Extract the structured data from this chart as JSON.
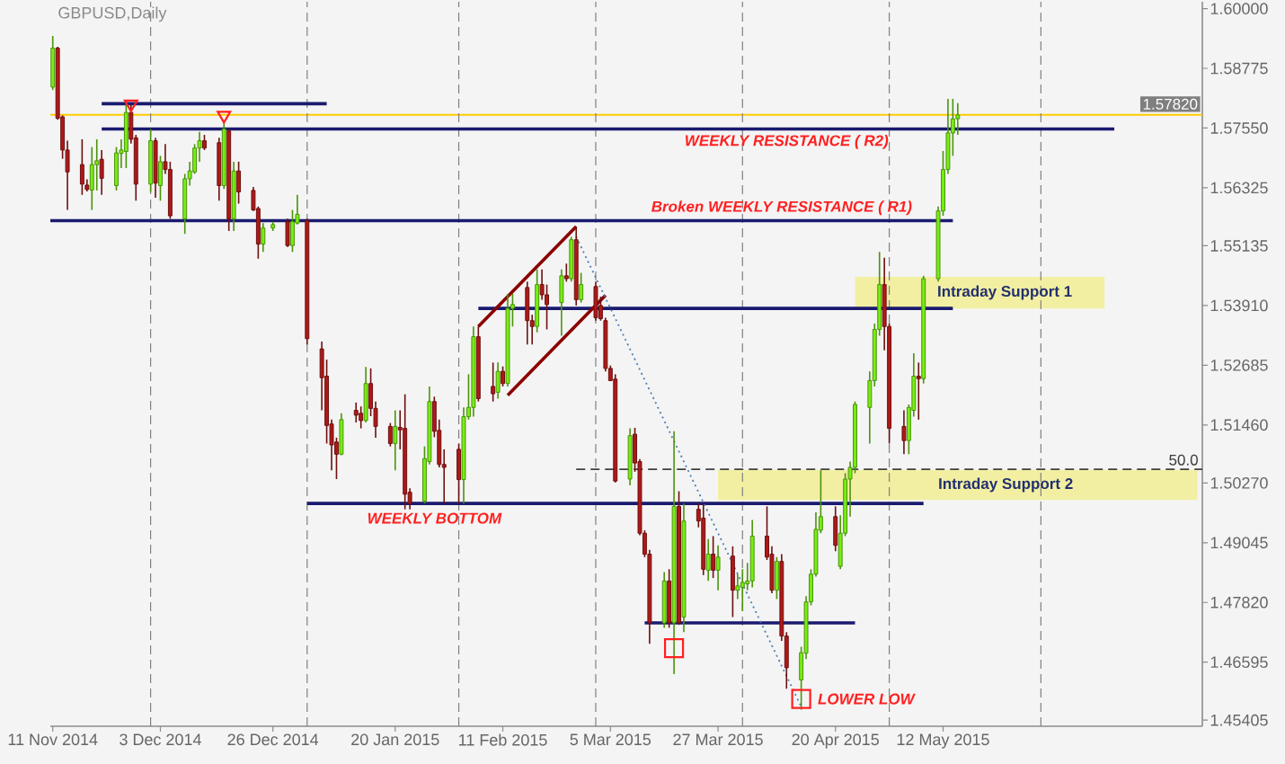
{
  "chart_data": {
    "type": "candlestick",
    "title": "GBPUSD,Daily",
    "xlim": [
      "2014-11-10T12:00",
      "2015-07-04"
    ],
    "ylim": [
      1.4528,
      1.6014
    ],
    "xticks": [
      {
        "value": "2014-11-11",
        "label": "11 Nov 2014"
      },
      {
        "value": "2014-12-03",
        "label": "3 Dec 2014"
      },
      {
        "value": "2014-12-26",
        "label": "26 Dec 2014"
      },
      {
        "value": "2015-01-20",
        "label": "20 Jan 2015"
      },
      {
        "value": "2015-02-11",
        "label": "11 Feb 2015"
      },
      {
        "value": "2015-03-05",
        "label": "5 Mar 2015"
      },
      {
        "value": "2015-03-27",
        "label": "27 Mar 2015"
      },
      {
        "value": "2015-04-20",
        "label": "20 Apr 2015"
      },
      {
        "value": "2015-05-12",
        "label": "12 May 2015"
      }
    ],
    "yticks": [
      {
        "value": 1.6,
        "label": "1.60000"
      },
      {
        "value": 1.58775,
        "label": "1.58775"
      },
      {
        "value": 1.5755,
        "label": "1.57550"
      },
      {
        "value": 1.56325,
        "label": "1.56325"
      },
      {
        "value": 1.55135,
        "label": "1.55135"
      },
      {
        "value": 1.5391,
        "label": "1.53910"
      },
      {
        "value": 1.52685,
        "label": "1.52685"
      },
      {
        "value": 1.5146,
        "label": "1.51460"
      },
      {
        "value": 1.5027,
        "label": "1.50270"
      },
      {
        "value": 1.49045,
        "label": "1.49045"
      },
      {
        "value": 1.4782,
        "label": "1.47820"
      },
      {
        "value": 1.46595,
        "label": "1.46595"
      },
      {
        "value": 1.45405,
        "label": "1.45405"
      }
    ],
    "series": [
      {
        "x": [
          "2014-11-11",
          "2014-11-12",
          "2014-11-13",
          "2014-11-14",
          "2014-11-17",
          "2014-11-18",
          "2014-11-19",
          "2014-11-20",
          "2014-11-21",
          "2014-11-24",
          "2014-11-25",
          "2014-11-26",
          "2014-11-27",
          "2014-11-28",
          "2014-12-01",
          "2014-12-02",
          "2014-12-03",
          "2014-12-04",
          "2014-12-05",
          "2014-12-08",
          "2014-12-09",
          "2014-12-10",
          "2014-12-11",
          "2014-12-12",
          "2014-12-15",
          "2014-12-16",
          "2014-12-17",
          "2014-12-18",
          "2014-12-19",
          "2014-12-22",
          "2014-12-23",
          "2014-12-24",
          "2014-12-26",
          "2014-12-29",
          "2014-12-30",
          "2014-12-31",
          "2015-01-02",
          "2015-01-05",
          "2015-01-06",
          "2015-01-07",
          "2015-01-08",
          "2015-01-09",
          "2015-01-12",
          "2015-01-13",
          "2015-01-14",
          "2015-01-15",
          "2015-01-16",
          "2015-01-19",
          "2015-01-20",
          "2015-01-21",
          "2015-01-22",
          "2015-01-23",
          "2015-01-26",
          "2015-01-27",
          "2015-01-28",
          "2015-01-29",
          "2015-01-30",
          "2015-02-02",
          "2015-02-03",
          "2015-02-04",
          "2015-02-05",
          "2015-02-06",
          "2015-02-09",
          "2015-02-10",
          "2015-02-11",
          "2015-02-12",
          "2015-02-13",
          "2015-02-16",
          "2015-02-17",
          "2015-02-18",
          "2015-02-19",
          "2015-02-20",
          "2015-02-23",
          "2015-02-24",
          "2015-02-25",
          "2015-02-26",
          "2015-02-27",
          "2015-03-02",
          "2015-03-03",
          "2015-03-04",
          "2015-03-05",
          "2015-03-06",
          "2015-03-09",
          "2015-03-10",
          "2015-03-11",
          "2015-03-12",
          "2015-03-13",
          "2015-03-16",
          "2015-03-17",
          "2015-03-18",
          "2015-03-19",
          "2015-03-20",
          "2015-03-23",
          "2015-03-24",
          "2015-03-25",
          "2015-03-26",
          "2015-03-27",
          "2015-03-30",
          "2015-03-31",
          "2015-04-01",
          "2015-04-02",
          "2015-04-03",
          "2015-04-06",
          "2015-04-07",
          "2015-04-08",
          "2015-04-09",
          "2015-04-10",
          "2015-04-13",
          "2015-04-14",
          "2015-04-15",
          "2015-04-16",
          "2015-04-17",
          "2015-04-20",
          "2015-04-21",
          "2015-04-22",
          "2015-04-23",
          "2015-04-24",
          "2015-04-27",
          "2015-04-28",
          "2015-04-29",
          "2015-04-30",
          "2015-05-01",
          "2015-05-04",
          "2015-05-05",
          "2015-05-06",
          "2015-05-07",
          "2015-05-08",
          "2015-05-11",
          "2015-05-12",
          "2015-05-13",
          "2015-05-14",
          "2015-05-15"
        ],
        "ohlc": [
          [
            1.5839,
            1.5944,
            1.5833,
            1.5919
          ],
          [
            1.5919,
            1.5922,
            1.5772,
            1.5775
          ],
          [
            1.5778,
            1.5781,
            1.5692,
            1.571
          ],
          [
            1.571,
            1.5729,
            1.5587,
            1.5665
          ],
          [
            1.568,
            1.5732,
            1.5618,
            1.564
          ],
          [
            1.5638,
            1.565,
            1.5625,
            1.5629
          ],
          [
            1.5628,
            1.5716,
            1.5587,
            1.568
          ],
          [
            1.568,
            1.5732,
            1.5627,
            1.5688
          ],
          [
            1.5691,
            1.571,
            1.5618,
            1.5652
          ],
          [
            1.5637,
            1.5716,
            1.5627,
            1.5704
          ],
          [
            1.5703,
            1.5732,
            1.5673,
            1.571
          ],
          [
            1.5707,
            1.5808,
            1.5673,
            1.5787
          ],
          [
            1.5787,
            1.5802,
            1.5723,
            1.5732
          ],
          [
            1.5735,
            1.5741,
            1.5606,
            1.564
          ],
          [
            1.564,
            1.5753,
            1.5624,
            1.5729
          ],
          [
            1.5729,
            1.5735,
            1.5612,
            1.5642
          ],
          [
            1.5637,
            1.5698,
            1.5606,
            1.5686
          ],
          [
            1.5686,
            1.5722,
            1.5661,
            1.567
          ],
          [
            1.567,
            1.5686,
            1.5569,
            1.5575
          ],
          [
            1.5569,
            1.5661,
            1.5538,
            1.5651
          ],
          [
            1.5651,
            1.5686,
            1.5637,
            1.5667
          ],
          [
            1.5665,
            1.5722,
            1.5661,
            1.5714
          ],
          [
            1.5714,
            1.5747,
            1.5686,
            1.5729
          ],
          [
            1.5729,
            1.5741,
            1.571,
            1.5714
          ],
          [
            1.5725,
            1.5735,
            1.5606,
            1.5637
          ],
          [
            1.5637,
            1.5765,
            1.563,
            1.5753
          ],
          [
            1.5749,
            1.5753,
            1.5544,
            1.5569
          ],
          [
            1.5569,
            1.5686,
            1.5544,
            1.5667
          ],
          [
            1.5667,
            1.5686,
            1.56,
            1.5624
          ],
          [
            1.5627,
            1.5634,
            1.5585,
            1.5587
          ],
          [
            1.559,
            1.5594,
            1.5487,
            1.5517
          ],
          [
            1.5517,
            1.556,
            1.5501,
            1.555
          ],
          [
            1.555,
            1.5563,
            1.5544,
            1.5557
          ],
          [
            1.5563,
            1.5569,
            1.5511,
            1.5514
          ],
          [
            1.5514,
            1.5587,
            1.5501,
            1.5563
          ],
          [
            1.556,
            1.5618,
            1.5557,
            1.5578
          ],
          [
            1.5565,
            1.5569,
            1.5311,
            1.5323
          ],
          [
            1.5302,
            1.5317,
            1.5176,
            1.5243
          ],
          [
            1.5246,
            1.528,
            1.5108,
            1.5145
          ],
          [
            1.5148,
            1.5157,
            1.5053,
            1.5105
          ],
          [
            1.5111,
            1.512,
            1.5035,
            1.5086
          ],
          [
            1.5086,
            1.517,
            1.5084,
            1.5157
          ],
          [
            1.5176,
            1.5192,
            1.5151,
            1.5166
          ],
          [
            1.517,
            1.5184,
            1.5139,
            1.5155
          ],
          [
            1.5155,
            1.5265,
            1.5151,
            1.5231
          ],
          [
            1.5231,
            1.5262,
            1.5164,
            1.518
          ],
          [
            1.518,
            1.5194,
            1.512,
            1.5143
          ],
          [
            1.5143,
            1.515,
            1.5102,
            1.5108
          ],
          [
            1.5108,
            1.5176,
            1.5053,
            1.5143
          ],
          [
            1.5141,
            1.5176,
            1.5096,
            1.5136
          ],
          [
            1.5139,
            1.5209,
            1.4973,
            1.5004
          ],
          [
            1.5008,
            1.5016,
            1.4973,
            1.4985
          ],
          [
            1.499,
            1.5102,
            1.4985,
            1.5077
          ],
          [
            1.5071,
            1.5225,
            1.5065,
            1.5194
          ],
          [
            1.5194,
            1.5204,
            1.5121,
            1.5133
          ],
          [
            1.5135,
            1.5157,
            1.5059,
            1.5065
          ],
          [
            1.5065,
            1.5096,
            1.4985,
            1.5059
          ],
          [
            1.5096,
            1.5108,
            1.4985,
            1.5034
          ],
          [
            1.5034,
            1.5182,
            1.4985,
            1.5163
          ],
          [
            1.5163,
            1.525,
            1.5157,
            1.5182
          ],
          [
            1.5182,
            1.5348,
            1.5163,
            1.5327
          ],
          [
            1.5327,
            1.5348,
            1.5194,
            1.52
          ],
          [
            1.5225,
            1.5274,
            1.5194,
            1.521
          ],
          [
            1.5213,
            1.5274,
            1.52,
            1.5256
          ],
          [
            1.5256,
            1.5266,
            1.5225,
            1.5231
          ],
          [
            1.5231,
            1.5415,
            1.5225,
            1.5385
          ],
          [
            1.5385,
            1.5415,
            1.5348,
            1.5393
          ],
          [
            1.5428,
            1.544,
            1.5311,
            1.536
          ],
          [
            1.536,
            1.5372,
            1.5311,
            1.5348
          ],
          [
            1.5348,
            1.5465,
            1.5336,
            1.5434
          ],
          [
            1.5434,
            1.5465,
            1.5403,
            1.5413
          ],
          [
            1.5413,
            1.5434,
            1.5342,
            1.5393
          ],
          [
            1.5397,
            1.5465,
            1.5329,
            1.5452
          ],
          [
            1.5452,
            1.5477,
            1.544,
            1.5446
          ],
          [
            1.5446,
            1.5532,
            1.544,
            1.5526
          ],
          [
            1.5526,
            1.5553,
            1.5391,
            1.5403
          ],
          [
            1.5403,
            1.5458,
            1.5397,
            1.5434
          ],
          [
            1.543,
            1.544,
            1.536,
            1.5366
          ],
          [
            1.5391,
            1.5409,
            1.536,
            1.5364
          ],
          [
            1.536,
            1.5366,
            1.5256,
            1.5262
          ],
          [
            1.5262,
            1.5268,
            1.5237,
            1.5237
          ],
          [
            1.524,
            1.525,
            1.5028,
            1.5031
          ],
          [
            1.5035,
            1.5139,
            1.5022,
            1.5124
          ],
          [
            1.5127,
            1.514,
            1.505,
            1.5068
          ],
          [
            1.5071,
            1.5076,
            1.492,
            1.4924
          ],
          [
            1.4924,
            1.493,
            1.4875,
            1.4881
          ],
          [
            1.4881,
            1.489,
            1.4697,
            1.474
          ],
          [
            1.474,
            1.4844,
            1.473,
            1.4826
          ],
          [
            1.4826,
            1.485,
            1.473,
            1.474
          ],
          [
            1.474,
            1.5133,
            1.4635,
            1.4979
          ],
          [
            1.4979,
            1.501,
            1.4736,
            1.474
          ],
          [
            1.4752,
            1.4985,
            1.4721,
            1.4949
          ],
          [
            1.4973,
            1.4985,
            1.4936,
            1.4949
          ],
          [
            1.4955,
            1.4985,
            1.4838,
            1.485
          ],
          [
            1.4848,
            1.4912,
            1.4826,
            1.4881
          ],
          [
            1.4881,
            1.4918,
            1.4832,
            1.4848
          ],
          [
            1.4848,
            1.4899,
            1.4807,
            1.4875
          ],
          [
            1.4877,
            1.4897,
            1.4752,
            1.4807
          ],
          [
            1.4807,
            1.484,
            1.4789,
            1.4816
          ],
          [
            1.4813,
            1.485,
            1.4764,
            1.4823
          ],
          [
            1.482,
            1.4863,
            1.4807,
            1.4826
          ],
          [
            1.4826,
            1.4951,
            1.4813,
            1.4918
          ],
          [
            1.4918,
            1.4979,
            1.4869,
            1.4875
          ],
          [
            1.4881,
            1.4897,
            1.4801,
            1.4807
          ],
          [
            1.4807,
            1.4875,
            1.4789,
            1.4866
          ],
          [
            1.4866,
            1.4881,
            1.4703,
            1.4713
          ],
          [
            1.4713,
            1.4721,
            1.4605,
            1.4648
          ],
          [
            1.4623,
            1.4691,
            1.4562,
            1.4679
          ],
          [
            1.4678,
            1.4795,
            1.4666,
            1.4783
          ],
          [
            1.4783,
            1.485,
            1.4776,
            1.484
          ],
          [
            1.484,
            1.4967,
            1.4835,
            1.4932
          ],
          [
            1.493,
            1.5053,
            1.4924,
            1.4958
          ],
          [
            1.4958,
            1.4979,
            1.4887,
            1.4899
          ],
          [
            1.4856,
            1.4961,
            1.485,
            1.4924
          ],
          [
            1.4924,
            1.5047,
            1.4918,
            1.5035
          ],
          [
            1.5035,
            1.5071,
            1.4958,
            1.5059
          ],
          [
            1.5059,
            1.5194,
            1.5047,
            1.5188
          ],
          [
            1.5182,
            1.5256,
            1.5108,
            1.5237
          ],
          [
            1.5237,
            1.5354,
            1.5225,
            1.5342
          ],
          [
            1.5342,
            1.5501,
            1.5329,
            1.5434
          ],
          [
            1.5434,
            1.5489,
            1.5299,
            1.5348
          ],
          [
            1.5348,
            1.5354,
            1.5108,
            1.5139
          ],
          [
            1.5143,
            1.5176,
            1.5086,
            1.5114
          ],
          [
            1.5114,
            1.5188,
            1.5086,
            1.5182
          ],
          [
            1.5176,
            1.5293,
            1.5163,
            1.5246
          ],
          [
            1.5246,
            1.5274,
            1.5157,
            1.5241
          ],
          [
            1.5241,
            1.5452,
            1.5231,
            1.5446
          ],
          [
            1.5446,
            1.5594,
            1.544,
            1.5585
          ],
          [
            1.5585,
            1.5708,
            1.5575,
            1.567
          ],
          [
            1.567,
            1.5815,
            1.5661,
            1.5745
          ],
          [
            1.5745,
            1.5815,
            1.5698,
            1.5774
          ],
          [
            1.5774,
            1.5806,
            1.5741,
            1.5782
          ]
        ],
        "colors": [
          "#77ee11",
          "#b01818",
          "#b01818",
          "#b01818",
          "#b01818",
          "#b01818",
          "#77ee11",
          "#77ee11",
          "#b01818",
          "#77ee11",
          "#77ee11",
          "#77ee11",
          "#b01818",
          "#b01818",
          "#77ee11",
          "#b01818",
          "#77ee11",
          "#b01818",
          "#b01818",
          "#77ee11",
          "#77ee11",
          "#77ee11",
          "#77ee11",
          "#b01818",
          "#b01818",
          "#77ee11",
          "#b01818",
          "#77ee11",
          "#b01818",
          "#b01818",
          "#b01818",
          "#77ee11",
          "#77ee11",
          "#b01818",
          "#77ee11",
          "#77ee11",
          "#b01818",
          "#b01818",
          "#b01818",
          "#b01818",
          "#b01818",
          "#77ee11",
          "#b01818",
          "#b01818",
          "#77ee11",
          "#b01818",
          "#b01818",
          "#b01818",
          "#77ee11",
          "#b01818",
          "#b01818",
          "#b01818",
          "#77ee11",
          "#77ee11",
          "#b01818",
          "#b01818",
          "#b01818",
          "#b01818",
          "#77ee11",
          "#77ee11",
          "#77ee11",
          "#b01818",
          "#b01818",
          "#77ee11",
          "#b01818",
          "#77ee11",
          "#77ee11",
          "#b01818",
          "#b01818",
          "#77ee11",
          "#b01818",
          "#b01818",
          "#77ee11",
          "#b01818",
          "#77ee11",
          "#b01818",
          "#77ee11",
          "#b01818",
          "#b01818",
          "#b01818",
          "#b01818",
          "#b01818",
          "#77ee11",
          "#b01818",
          "#b01818",
          "#b01818",
          "#b01818",
          "#77ee11",
          "#b01818",
          "#77ee11",
          "#b01818",
          "#77ee11",
          "#b01818",
          "#b01818",
          "#77ee11",
          "#b01818",
          "#77ee11",
          "#b01818",
          "#77ee11",
          "#77ee11",
          "#77ee11",
          "#77ee11",
          "#b01818",
          "#b01818",
          "#77ee11",
          "#b01818",
          "#b01818",
          "#77ee11",
          "#77ee11",
          "#77ee11",
          "#77ee11",
          "#77ee11",
          "#b01818",
          "#77ee11",
          "#77ee11",
          "#77ee11",
          "#77ee11",
          "#77ee11",
          "#77ee11",
          "#77ee11",
          "#b01818",
          "#b01818",
          "#b01818",
          "#77ee11",
          "#77ee11",
          "#b01818",
          "#77ee11",
          "#77ee11",
          "#77ee11",
          "#77ee11",
          "#77ee11",
          "#77ee11"
        ]
      },
      {
        "type": "line",
        "x": [
          "2014-11-21",
          "2015-01-06"
        ],
        "values": [
          1.5805,
          1.5805
        ],
        "color": "#1a1a70",
        "line_style": "solid"
      },
      {
        "type": "line",
        "x": [
          "2014-11-21",
          "2015-06-16"
        ],
        "values": [
          1.5753,
          1.5753
        ],
        "color": "#1a1a70",
        "line_style": "solid"
      },
      {
        "type": "line",
        "x": [
          "2014-11-10T12:00",
          "2015-05-14"
        ],
        "values": [
          1.5565,
          1.5565
        ],
        "color": "#1a1a70",
        "line_style": "solid"
      },
      {
        "type": "line",
        "x": [
          "2015-02-06",
          "2015-05-14"
        ],
        "values": [
          1.5385,
          1.5385
        ],
        "color": "#1a1a70",
        "line_style": "solid"
      },
      {
        "type": "line",
        "x": [
          "2015-01-02",
          "2015-05-08"
        ],
        "values": [
          1.4985,
          1.4985
        ],
        "color": "#1a1a70",
        "line_style": "solid"
      },
      {
        "type": "line",
        "x": [
          "2015-03-12",
          "2015-04-24"
        ],
        "values": [
          1.474,
          1.474
        ],
        "color": "#1a1a70",
        "line_style": "solid"
      },
      {
        "type": "line",
        "x": [
          "2015-02-26",
          "2015-07-04"
        ],
        "values": [
          1.5055,
          1.5055
        ],
        "color": "#404040",
        "line_style": "dashed"
      },
      {
        "type": "line",
        "x": [
          "2015-02-06",
          "2015-02-26"
        ],
        "values": [
          1.5348,
          1.5553
        ],
        "color": "#8b0000",
        "line_style": "solid"
      },
      {
        "type": "line",
        "x": [
          "2015-02-12",
          "2015-03-04"
        ],
        "values": [
          1.5207,
          1.5412
        ],
        "color": "#8b0000",
        "line_style": "solid"
      },
      {
        "type": "line",
        "x": [
          "2015-02-26",
          "2015-04-13"
        ],
        "values": [
          1.5532,
          1.4568
        ],
        "color": "#4a7fb5",
        "line_style": "dotted"
      },
      {
        "type": "line",
        "x": [
          "2015-04-24",
          "2015-06-14"
        ],
        "values": [
          null,
          null
        ],
        "lower": [
          1.5385,
          1.5385
        ],
        "upper": [
          1.545,
          1.545
        ],
        "color": "#f2efa2"
      },
      {
        "type": "line",
        "x": [
          "2015-03-27",
          "2015-07-03"
        ],
        "values": [
          null,
          null
        ],
        "lower": [
          1.4992,
          1.4992
        ],
        "upper": [
          1.5054,
          1.5054
        ],
        "color": "#f2efa2"
      },
      {
        "type": "scatter",
        "x": [
          "2014-11-27",
          "2014-12-16"
        ],
        "values": [
          1.5804,
          1.5781
        ],
        "color": "#ff2020",
        "marker": "triangle"
      },
      {
        "type": "scatter",
        "x": [
          "2015-03-18",
          "2015-04-13"
        ],
        "values": [
          1.4688,
          1.4584
        ],
        "color": "#ff2020",
        "marker": "square"
      }
    ],
    "ref_lines": [
      {
        "axis": "y",
        "value": 1.5782,
        "label": "1.57820",
        "color": "#ffcc00"
      },
      {
        "axis": "x",
        "value": "2014-12-01",
        "color": "#808080",
        "line_style": "dashed"
      },
      {
        "axis": "x",
        "value": "2015-01-02",
        "color": "#808080",
        "line_style": "dashed"
      },
      {
        "axis": "x",
        "value": "2015-02-02",
        "color": "#808080",
        "line_style": "dashed"
      },
      {
        "axis": "x",
        "value": "2015-03-02",
        "color": "#808080",
        "line_style": "dashed"
      },
      {
        "axis": "x",
        "value": "2015-04-01",
        "color": "#808080",
        "line_style": "dashed"
      },
      {
        "axis": "x",
        "value": "2015-05-01",
        "color": "#808080",
        "line_style": "dashed"
      },
      {
        "axis": "x",
        "value": "2015-06-01",
        "color": "#808080",
        "line_style": "dashed"
      }
    ],
    "annotations": [
      {
        "text": "WEEKLY RESISTANCE ( R2)",
        "x": "2015-04-10",
        "y": 1.5753
      },
      {
        "text": "Broken WEEKLY RESISTANCE ( R1)",
        "x": "2015-04-09",
        "y": 1.5565
      },
      "Intraday Support 1",
      "Intraday Support 2",
      {
        "text": "WEEKLY BOTTOM",
        "x": "2015-01-28",
        "y": 1.4985
      },
      {
        "text": "LOWER LOW",
        "x": "2015-04-13",
        "y": 1.4584
      },
      {
        "text": "50.0",
        "x": "2015-07-04",
        "y": 1.5055
      }
    ]
  }
}
